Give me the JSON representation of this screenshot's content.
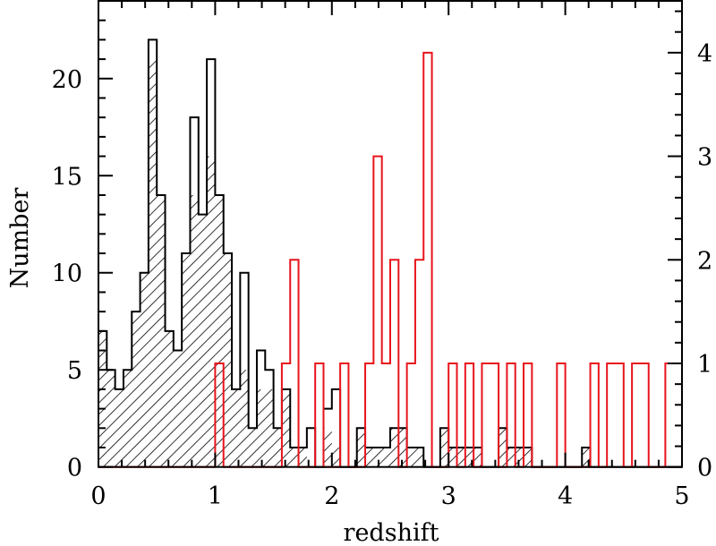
{
  "chart_data": {
    "type": "bar",
    "histogram": true,
    "title": "",
    "xlabel": "redshift",
    "ylabel": "Number",
    "ylabel_right": "",
    "xlim": [
      0,
      5
    ],
    "ylim": [
      0,
      24
    ],
    "ylim_right": [
      0,
      4.5
    ],
    "grid": false,
    "legend": "none",
    "bins": {
      "start": 0,
      "end": 5,
      "n": 70
    },
    "x_ticks": [
      "0",
      "1",
      "2",
      "3",
      "4",
      "5"
    ],
    "y_ticks": [
      "0",
      "5",
      "10",
      "15",
      "20"
    ],
    "y_ticks_right": [
      "0",
      "1",
      "2",
      "3",
      "4"
    ],
    "series": [
      {
        "style": "open-black-step",
        "axis": "left",
        "color": "#000000",
        "values": [
          7,
          5,
          4,
          5,
          8,
          10,
          22,
          14,
          7,
          6,
          11,
          18,
          13,
          21,
          14,
          11,
          4,
          10,
          2,
          6,
          5,
          2,
          4,
          1,
          1,
          2,
          0,
          3,
          4,
          0,
          0,
          2,
          1,
          1,
          1,
          2,
          2,
          1,
          1,
          0,
          0,
          2,
          1,
          1,
          1,
          1,
          0,
          0,
          2,
          1,
          1,
          1,
          0,
          0,
          0,
          0,
          0,
          0,
          1,
          0,
          0,
          0,
          0,
          0,
          0,
          0,
          0,
          0,
          0,
          0
        ]
      },
      {
        "style": "hatched-black",
        "axis": "left",
        "color": "#000000",
        "values": [
          7,
          5,
          4,
          5,
          8,
          10,
          21,
          14,
          7,
          6,
          11,
          14,
          13,
          16,
          14,
          11,
          4,
          5,
          2,
          4,
          4,
          2,
          4,
          1,
          1,
          0,
          0,
          2,
          1,
          0,
          0,
          2,
          1,
          1,
          1,
          2,
          2,
          1,
          1,
          0,
          0,
          2,
          1,
          1,
          1,
          1,
          0,
          0,
          2,
          1,
          1,
          1,
          0,
          0,
          0,
          0,
          0,
          0,
          1,
          0,
          0,
          0,
          0,
          0,
          0,
          0,
          0,
          0,
          0,
          0
        ]
      },
      {
        "style": "open-red-step",
        "axis": "right",
        "color": "#e8141c",
        "values": [
          0,
          0,
          0,
          0,
          0,
          0,
          0,
          0,
          0,
          0,
          0,
          0,
          0,
          0,
          1,
          0,
          0,
          0,
          0,
          0,
          0,
          0,
          1,
          2,
          0,
          0,
          1,
          0,
          0,
          1,
          0,
          0,
          1,
          3,
          1,
          2,
          0,
          1,
          2,
          4,
          0,
          0,
          1,
          0,
          1,
          0,
          1,
          1,
          0,
          1,
          0,
          1,
          0,
          0,
          0,
          1,
          0,
          0,
          0,
          1,
          0,
          1,
          1,
          0,
          1,
          1,
          0,
          0,
          1,
          1
        ]
      }
    ]
  }
}
